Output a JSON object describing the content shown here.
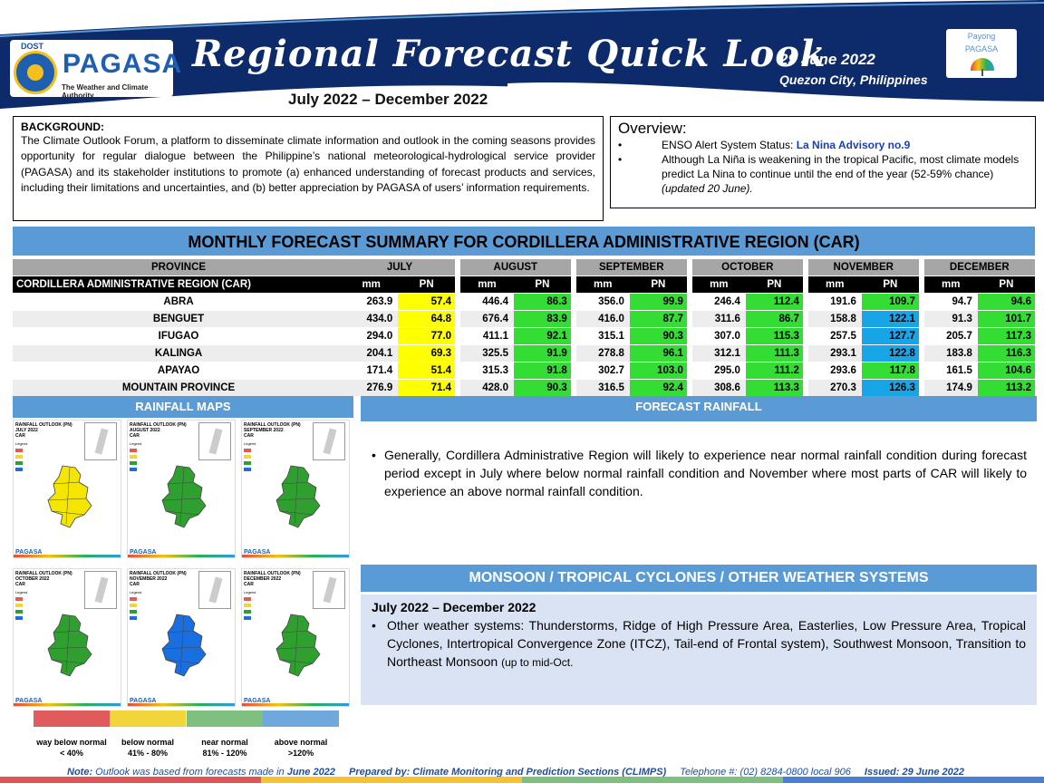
{
  "header": {
    "dost_label": "DOST",
    "logo_name": "PAGASA",
    "logo_tagline": "The Weather and Climate Authority",
    "title": "Regional Forecast Quick Look",
    "period": "July 2022 – December 2022",
    "date": "29 June 2022",
    "place": "Quezon City, Philippines",
    "payong_line1": "Payong",
    "payong_line2": "PAGASA",
    "colors": {
      "navy": "#0d2a6b",
      "accent_blue": "#5b9bd5"
    }
  },
  "background": {
    "title": "BACKGROUND:",
    "text": "The Climate Outlook Forum, a platform to disseminate climate information and outlook in the coming seasons provides opportunity for regular dialogue between the Philippine’s national meteorological-hydrological service provider (PAGASA) and its stakeholder institutions to promote (a) enhanced understanding of forecast products and services, including their limitations and uncertainties, and (b) better appreciation by PAGASA of users’ information requirements."
  },
  "overview": {
    "title": "Overview:",
    "item1_prefix": "ENSO Alert System Status: ",
    "item1_highlight": "La Nina Advisory no.9",
    "item2_text": "Although La Niña is weakening in the tropical Pacific, most climate models predict La Nina to continue until the end of the year (52-59% chance) ",
    "item2_note": "(updated 20 June)."
  },
  "table": {
    "banner": "MONTHLY FORECAST SUMMARY FOR CORDILLERA ADMINISTRATIVE REGION (CAR)",
    "province_header": "PROVINCE",
    "months": [
      "JULY",
      "AUGUST",
      "SEPTEMBER",
      "OCTOBER",
      "NOVEMBER",
      "DECEMBER"
    ],
    "region_label": "CORDILLERA ADMINISTRATIVE REGION (CAR)",
    "mm_label": "mm",
    "pn_label": "PN",
    "rows": [
      {
        "province": "ABRA",
        "values": [
          [
            "263.9",
            "57.4"
          ],
          [
            "446.4",
            "86.3"
          ],
          [
            "356.0",
            "99.9"
          ],
          [
            "246.4",
            "112.4"
          ],
          [
            "191.6",
            "109.7"
          ],
          [
            "94.7",
            "94.6"
          ]
        ],
        "colors": [
          "yellow",
          "green",
          "green",
          "green",
          "green",
          "green"
        ]
      },
      {
        "province": "BENGUET",
        "values": [
          [
            "434.0",
            "64.8"
          ],
          [
            "676.4",
            "83.9"
          ],
          [
            "416.0",
            "87.7"
          ],
          [
            "311.6",
            "86.7"
          ],
          [
            "158.8",
            "122.1"
          ],
          [
            "91.3",
            "101.7"
          ]
        ],
        "colors": [
          "yellow",
          "green",
          "green",
          "green",
          "blue",
          "green"
        ]
      },
      {
        "province": "IFUGAO",
        "values": [
          [
            "294.0",
            "77.0"
          ],
          [
            "411.1",
            "92.1"
          ],
          [
            "315.1",
            "90.3"
          ],
          [
            "307.0",
            "115.3"
          ],
          [
            "257.5",
            "127.7"
          ],
          [
            "205.7",
            "117.3"
          ]
        ],
        "colors": [
          "yellow",
          "green",
          "green",
          "green",
          "blue",
          "green"
        ]
      },
      {
        "province": "KALINGA",
        "values": [
          [
            "204.1",
            "69.3"
          ],
          [
            "325.5",
            "91.9"
          ],
          [
            "278.8",
            "96.1"
          ],
          [
            "312.1",
            "111.3"
          ],
          [
            "293.1",
            "122.8"
          ],
          [
            "183.8",
            "116.3"
          ]
        ],
        "colors": [
          "yellow",
          "green",
          "green",
          "green",
          "blue",
          "green"
        ]
      },
      {
        "province": "APAYAO",
        "values": [
          [
            "171.4",
            "51.4"
          ],
          [
            "315.3",
            "91.8"
          ],
          [
            "302.7",
            "103.0"
          ],
          [
            "295.0",
            "111.2"
          ],
          [
            "293.6",
            "117.8"
          ],
          [
            "161.5",
            "104.6"
          ]
        ],
        "colors": [
          "yellow",
          "green",
          "green",
          "green",
          "green",
          "green"
        ]
      },
      {
        "province": "MOUNTAIN PROVINCE",
        "values": [
          [
            "276.9",
            "71.4"
          ],
          [
            "428.0",
            "90.3"
          ],
          [
            "316.5",
            "92.4"
          ],
          [
            "308.6",
            "113.3"
          ],
          [
            "270.3",
            "126.3"
          ],
          [
            "174.9",
            "113.2"
          ]
        ],
        "colors": [
          "yellow",
          "green",
          "green",
          "green",
          "blue",
          "green"
        ]
      }
    ]
  },
  "rainfall_maps": {
    "banner": "RAINFALL MAPS",
    "maps": [
      {
        "title": "RAINFALL OUTLOOK (PN)",
        "month": "JULY 2022",
        "region": "CAR",
        "fill": "#f5e600"
      },
      {
        "title": "RAINFALL OUTLOOK (PN)",
        "month": "AUGUST 2022",
        "region": "CAR",
        "fill": "#2fa02f"
      },
      {
        "title": "RAINFALL OUTLOOK (PN)",
        "month": "SEPTEMBER 2022",
        "region": "CAR",
        "fill": "#2fa02f"
      },
      {
        "title": "RAINFALL OUTLOOK (PN)",
        "month": "OCTOBER 2022",
        "region": "CAR",
        "fill": "#2fa02f"
      },
      {
        "title": "RAINFALL OUTLOOK (PN)",
        "month": "NOVEMBER 2022",
        "region": "CAR",
        "fill": "#1a6fe0"
      },
      {
        "title": "RAINFALL OUTLOOK (PN)",
        "month": "DECEMBER 2022",
        "region": "CAR",
        "fill": "#2fa02f"
      }
    ],
    "map_legend_title": "Legend",
    "map_logo": "PAGASA",
    "scale": [
      {
        "label": "way below normal",
        "range": "< 40%",
        "color": "#e05b5b"
      },
      {
        "label": "below normal",
        "range": "41% - 80%",
        "color": "#f2d43b"
      },
      {
        "label": "near normal",
        "range": "81% - 120%",
        "color": "#7fbf7f"
      },
      {
        "label": "above normal",
        "range": ">120%",
        "color": "#6fa8dc"
      }
    ]
  },
  "forecast_rainfall": {
    "banner": "FORECAST RAINFALL",
    "text": "Generally, Cordillera Administrative Region will likely to experience near normal rainfall condition during forecast period except in July where below normal rainfall condition and November where most parts of CAR will likely to experience an above normal rainfall condition."
  },
  "monsoon": {
    "banner": "MONSOON / TROPICAL CYCLONES / OTHER WEATHER SYSTEMS",
    "period": "July 2022 – December 2022",
    "text": "Other weather systems: Thunderstorms,  Ridge of High Pressure Area,  Easterlies, Low Pressure Area, Tropical Cyclones, Intertropical Convergence Zone (ITCZ), Tail-end of Frontal system), Southwest Monsoon, Transition to Northeast Monsoon ",
    "note": "(up to mid-Oct."
  },
  "footer": {
    "note_label": "Note:",
    "note_text": " Outlook was based from forecasts made in ",
    "note_month": "June 2022",
    "prepared": "Prepared by: Climate Monitoring and Prediction Sections (CLIMPS)",
    "telephone": "Telephone #: (02) 8284-0800 local 906",
    "issued": "Issued: 29 June 2022"
  }
}
